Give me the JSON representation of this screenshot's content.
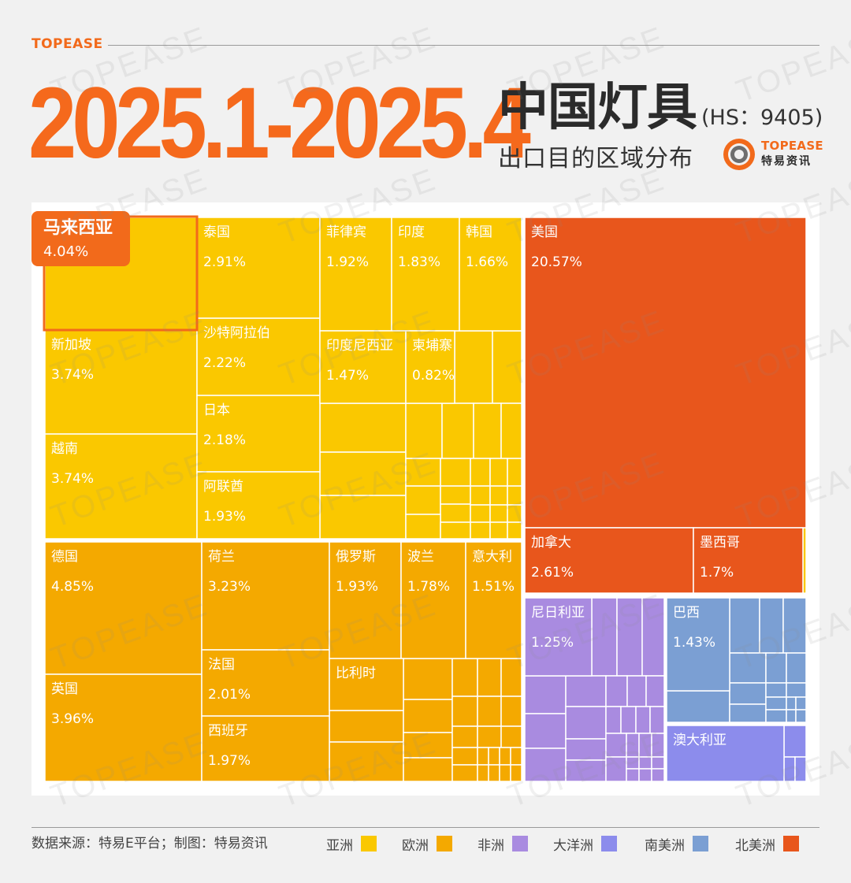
{
  "brand": {
    "top_label": "TOPEASE",
    "logo_en": "TOPEASE",
    "logo_cn": "特易资讯",
    "watermark": "TOPEASE"
  },
  "header": {
    "period": "2025.1-2025.4",
    "title": "中国灯具",
    "hs_code": "(HS：9405)",
    "subtitle": "出口目的区域分布"
  },
  "footer": {
    "source": "数据来源：特易E平台；制图：特易资讯"
  },
  "colors": {
    "asia": "#fac800",
    "europe": "#f4a900",
    "africa": "#a98be0",
    "oceania": "#8c8cec",
    "south_america": "#7b9fd3",
    "north_america": "#e8561c",
    "accent": "#f26a1b"
  },
  "legend": [
    {
      "label": "亚洲",
      "color": "#fac800"
    },
    {
      "label": "欧洲",
      "color": "#f4a900"
    },
    {
      "label": "非洲",
      "color": "#a98be0"
    },
    {
      "label": "大洋洲",
      "color": "#8c8cec"
    },
    {
      "label": "南美洲",
      "color": "#7b9fd3"
    },
    {
      "label": "北美洲",
      "color": "#e8561c"
    }
  ],
  "highlight": {
    "name": "马来西亚",
    "value": "4.04%"
  },
  "chart_data": {
    "type": "treemap",
    "unit": "%",
    "labeled_items": [
      {
        "name": "美国",
        "region": "北美洲",
        "value": 20.57
      },
      {
        "name": "德国",
        "region": "欧洲",
        "value": 4.85
      },
      {
        "name": "马来西亚",
        "region": "亚洲",
        "value": 4.04
      },
      {
        "name": "英国",
        "region": "欧洲",
        "value": 3.96
      },
      {
        "name": "新加坡",
        "region": "亚洲",
        "value": 3.74
      },
      {
        "name": "越南",
        "region": "亚洲",
        "value": 3.74
      },
      {
        "name": "荷兰",
        "region": "欧洲",
        "value": 3.23
      },
      {
        "name": "泰国",
        "region": "亚洲",
        "value": 2.91
      },
      {
        "name": "加拿大",
        "region": "北美洲",
        "value": 2.61
      },
      {
        "name": "沙特阿拉伯",
        "region": "亚洲",
        "value": 2.22
      },
      {
        "name": "日本",
        "region": "亚洲",
        "value": 2.18
      },
      {
        "name": "法国",
        "region": "欧洲",
        "value": 2.01
      },
      {
        "name": "西班牙",
        "region": "欧洲",
        "value": 1.97
      },
      {
        "name": "阿联酋",
        "region": "亚洲",
        "value": 1.93
      },
      {
        "name": "俄罗斯",
        "region": "欧洲",
        "value": 1.93
      },
      {
        "name": "菲律宾",
        "region": "亚洲",
        "value": 1.92
      },
      {
        "name": "印度",
        "region": "亚洲",
        "value": 1.83
      },
      {
        "name": "波兰",
        "region": "欧洲",
        "value": 1.78
      },
      {
        "name": "墨西哥",
        "region": "北美洲",
        "value": 1.7
      },
      {
        "name": "韩国",
        "region": "亚洲",
        "value": 1.66
      },
      {
        "name": "意大利",
        "region": "欧洲",
        "value": 1.51
      },
      {
        "name": "印度尼西亚",
        "region": "亚洲",
        "value": 1.47
      },
      {
        "name": "巴西",
        "region": "南美洲",
        "value": 1.43
      },
      {
        "name": "尼日利亚",
        "region": "非洲",
        "value": 1.25
      },
      {
        "name": "柬埔寨",
        "region": "亚洲",
        "value": 0.82
      },
      {
        "name": "比利时",
        "region": "欧洲",
        "value": null
      },
      {
        "name": "澳大利亚",
        "region": "大洋洲",
        "value": null
      }
    ]
  }
}
